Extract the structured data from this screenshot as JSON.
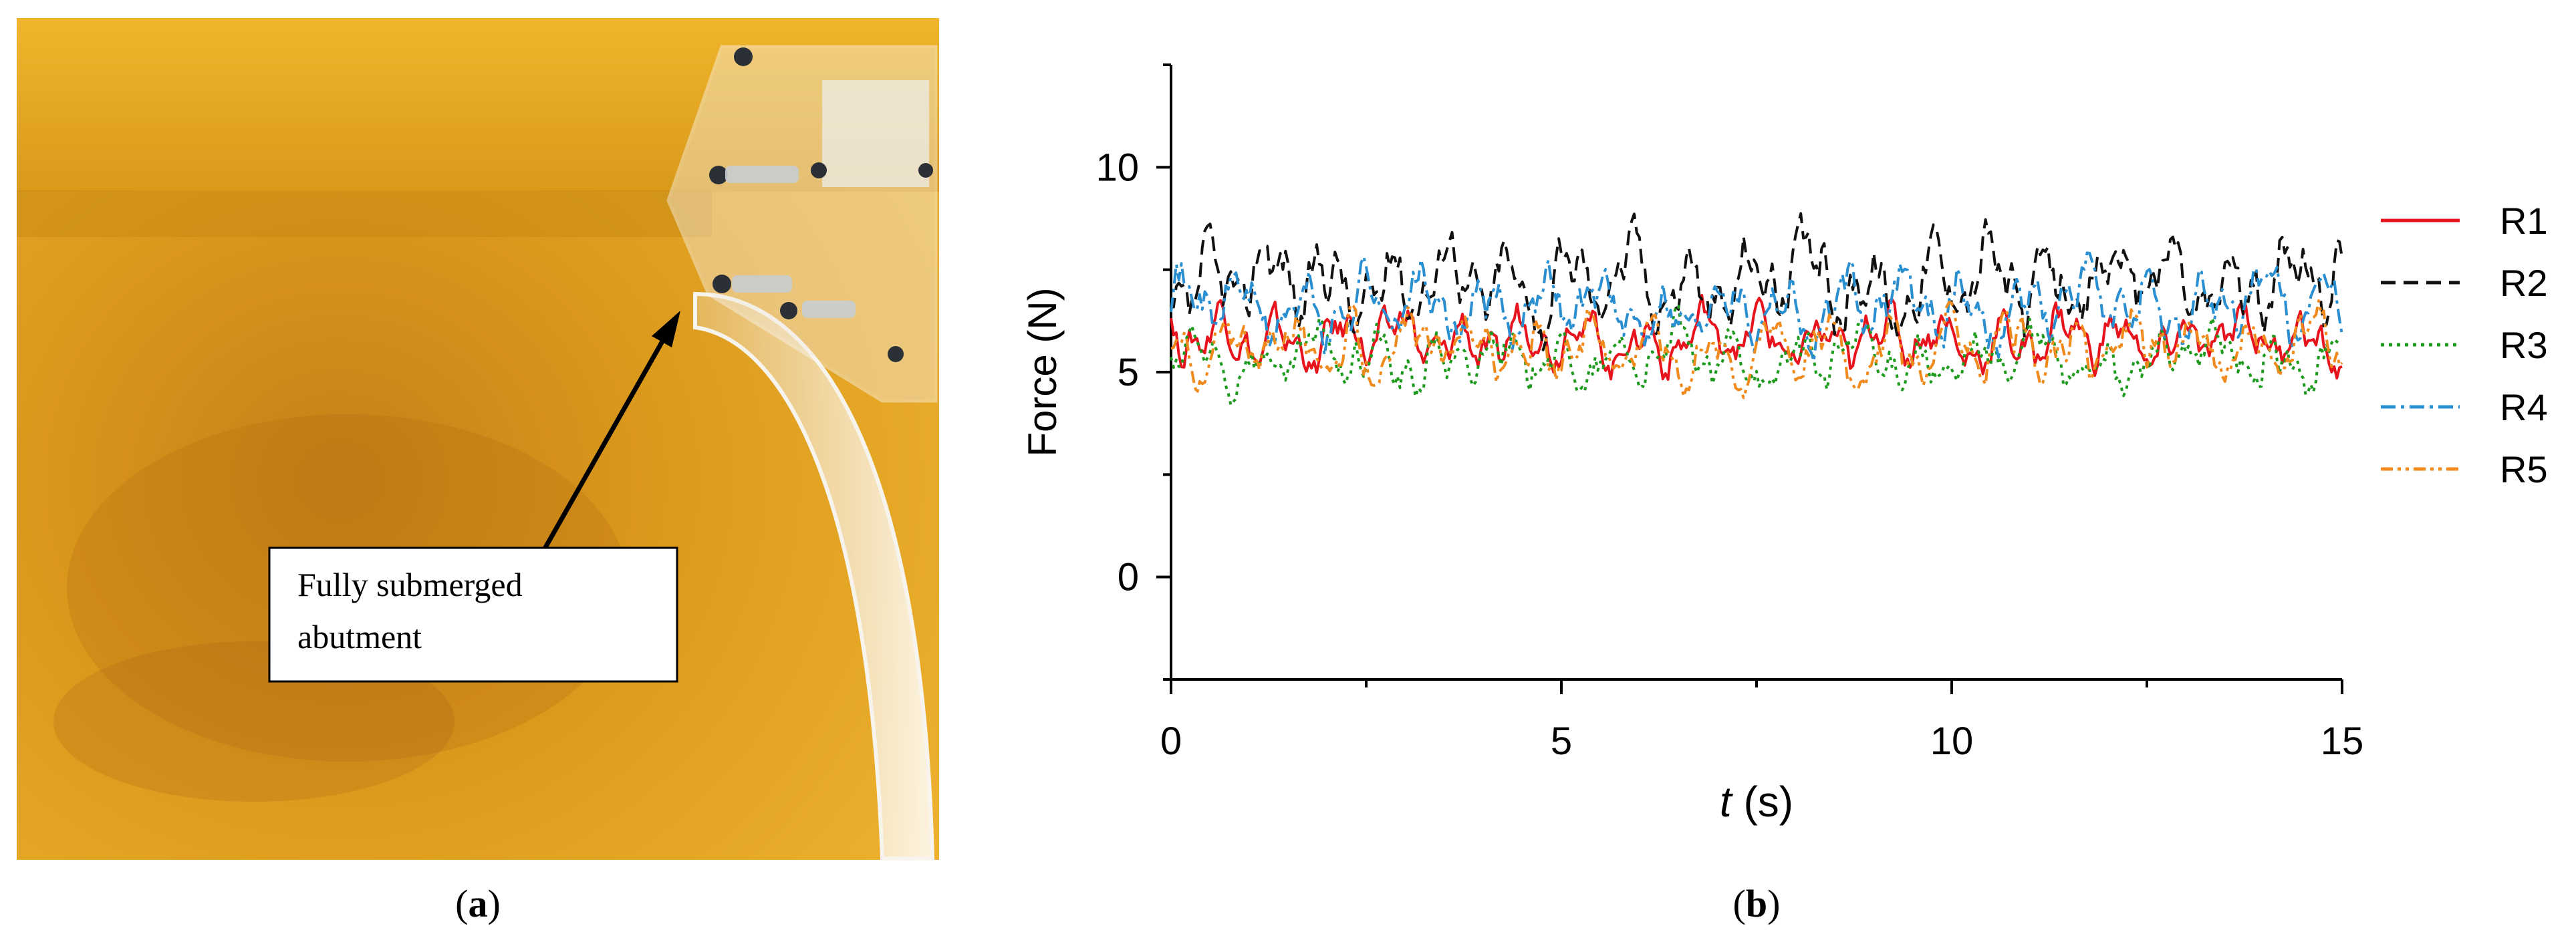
{
  "panel_a": {
    "label_open": "(",
    "label_letter": "a",
    "label_close": ")",
    "callout_line1": "Fully submerged",
    "callout_line2": "abutment",
    "photo_description_colors": {
      "water": "#e3a21d",
      "water_dark": "#c9861a",
      "acrylic": "#e8e4dc"
    }
  },
  "panel_b": {
    "label_open": "(",
    "label_letter": "b",
    "label_close": ")"
  },
  "chart_data": {
    "type": "line",
    "title": "",
    "xlabel_italic": "t",
    "xlabel_rest": " (s)",
    "ylabel": "Force (N)",
    "xlim": [
      0,
      15
    ],
    "ylim": [
      -2.5,
      12.5
    ],
    "xticks": [
      0,
      5,
      10,
      15
    ],
    "xtick_labels": [
      "0",
      "5",
      "10",
      "15"
    ],
    "yticks": [
      0,
      5,
      10
    ],
    "ytick_labels": [
      "0",
      "5",
      "10"
    ],
    "grid": false,
    "legend_position": "right",
    "series": [
      {
        "name": "R1",
        "color": "#e8141d",
        "dash": "",
        "mean": 5.8,
        "amp": 0.75,
        "seed": 1
      },
      {
        "name": "R2",
        "color": "#111111",
        "dash": "22,12",
        "mean": 7.2,
        "amp": 1.15,
        "seed": 2
      },
      {
        "name": "R3",
        "color": "#1e9a1e",
        "dash": "5,7",
        "mean": 5.3,
        "amp": 0.8,
        "seed": 3
      },
      {
        "name": "R4",
        "color": "#2a8fd0",
        "dash": "22,8,5,8",
        "mean": 6.6,
        "amp": 0.95,
        "seed": 4
      },
      {
        "name": "R5",
        "color": "#f08a1c",
        "dash": "18,7,5,7,5,7",
        "mean": 5.6,
        "amp": 0.85,
        "seed": 5
      }
    ]
  }
}
